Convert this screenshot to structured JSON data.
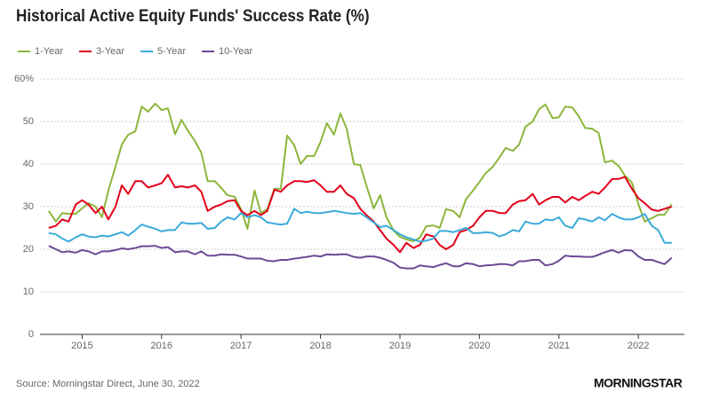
{
  "chart_data": {
    "type": "line",
    "title": "Historical Active Equity Funds' Success Rate (%)",
    "source": "Source: Morningstar Direct, June 30, 2022",
    "brand": "MORNINGSTAR",
    "x": [
      2014.58,
      2014.67,
      2014.75,
      2014.83,
      2014.92,
      2015.0,
      2015.08,
      2015.17,
      2015.25,
      2015.33,
      2015.42,
      2015.5,
      2015.58,
      2015.67,
      2015.75,
      2015.83,
      2015.92,
      2016.0,
      2016.08,
      2016.17,
      2016.25,
      2016.33,
      2016.42,
      2016.5,
      2016.58,
      2016.67,
      2016.75,
      2016.83,
      2016.92,
      2017.0,
      2017.08,
      2017.17,
      2017.25,
      2017.33,
      2017.42,
      2017.5,
      2017.58,
      2017.67,
      2017.75,
      2017.83,
      2017.92,
      2018.0,
      2018.08,
      2018.17,
      2018.25,
      2018.33,
      2018.42,
      2018.5,
      2018.58,
      2018.67,
      2018.75,
      2018.83,
      2018.92,
      2019.0,
      2019.08,
      2019.17,
      2019.25,
      2019.33,
      2019.42,
      2019.5,
      2019.58,
      2019.67,
      2019.75,
      2019.83,
      2019.92,
      2020.0,
      2020.08,
      2020.17,
      2020.25,
      2020.33,
      2020.42,
      2020.5,
      2020.58,
      2020.67,
      2020.75,
      2020.83,
      2020.92,
      2021.0,
      2021.08,
      2021.17,
      2021.25,
      2021.33,
      2021.42,
      2021.5,
      2021.58,
      2021.67,
      2021.75,
      2021.83,
      2021.92,
      2022.0,
      2022.08,
      2022.17,
      2022.25,
      2022.33,
      2022.42
    ],
    "series": [
      {
        "name": "1-Year",
        "color": "#8cb63c",
        "values": [
          29,
          26.5,
          28.5,
          28.3,
          28.3,
          29.6,
          30.8,
          30,
          27.5,
          33.8,
          39.4,
          44.6,
          46.9,
          47.7,
          53.5,
          52.3,
          54.2,
          52.7,
          53.1,
          47,
          50.4,
          47.9,
          45.4,
          42.7,
          36,
          36,
          34.4,
          32.7,
          32.3,
          29.4,
          24.8,
          33.8,
          28.5,
          29.4,
          34.2,
          34.2,
          46.7,
          44.4,
          40,
          41.9,
          41.9,
          45.2,
          49.6,
          46.9,
          51.9,
          48.3,
          40,
          39.8,
          34.8,
          29.6,
          32.7,
          27.5,
          24.4,
          22.9,
          22.3,
          21.9,
          22.7,
          25.4,
          25.6,
          25,
          29.4,
          29,
          27.5,
          31.7,
          33.8,
          35.8,
          37.9,
          39.4,
          41.5,
          43.8,
          43.1,
          44.6,
          48.8,
          50,
          52.9,
          54,
          50.8,
          51,
          53.5,
          53.3,
          51.2,
          48.5,
          48.3,
          47.3,
          40.4,
          40.8,
          39.6,
          37.3,
          35.6,
          30.6,
          26.5,
          27.3,
          28.1,
          28.1,
          30.6
        ]
      },
      {
        "name": "3-Year",
        "color": "#e2001a",
        "values": [
          25,
          25.5,
          27,
          26.5,
          30.5,
          31.5,
          30.5,
          28.5,
          30,
          27,
          30,
          35,
          33,
          36,
          36,
          34.5,
          35,
          35.5,
          37.5,
          34.5,
          34.8,
          34.5,
          35,
          33.5,
          29,
          30,
          30.5,
          31.3,
          31.5,
          29,
          28,
          29,
          28,
          29,
          34,
          33.5,
          35,
          36,
          36,
          35.8,
          36.2,
          35,
          33.5,
          33.5,
          35,
          33,
          32,
          29.5,
          28,
          26.5,
          24.5,
          22.5,
          21,
          19.3,
          21.5,
          20.3,
          21,
          23.5,
          23,
          21,
          20,
          21,
          24,
          24.5,
          25.5,
          27.5,
          29,
          29,
          28.5,
          28.5,
          30.5,
          31.3,
          31.5,
          33,
          30.5,
          31.5,
          32.3,
          32.3,
          31,
          32.3,
          31.5,
          32.5,
          33.5,
          33,
          34.5,
          36.5,
          36.5,
          37,
          34.2,
          32,
          30.8,
          29.3,
          29,
          29.5,
          30
        ]
      },
      {
        "name": "5-Year",
        "color": "#3aaad8",
        "values": [
          23.8,
          23.5,
          22.5,
          21.8,
          22.8,
          23.5,
          23,
          22.8,
          23.2,
          23,
          23.5,
          24,
          23.2,
          24.5,
          25.8,
          25.3,
          24.8,
          24.2,
          24.5,
          24.5,
          26.3,
          26,
          26,
          26.2,
          24.8,
          25,
          26.5,
          27.5,
          27,
          28.5,
          27.5,
          28,
          27.5,
          26.3,
          26,
          25.8,
          26,
          29.5,
          28.5,
          28.8,
          28.5,
          28.5,
          28.7,
          29,
          28.8,
          28.5,
          28.3,
          28.5,
          27.5,
          26.3,
          25.2,
          25.5,
          24.5,
          23.5,
          22.8,
          22.3,
          21.8,
          22,
          22.5,
          24.3,
          24.3,
          24,
          24.5,
          25,
          23.8,
          23.8,
          24,
          23.8,
          23,
          23.5,
          24.5,
          24.2,
          26.5,
          26,
          26,
          27,
          26.8,
          27.5,
          25.5,
          25,
          27.3,
          27,
          26.5,
          27.5,
          26.8,
          28.3,
          27.5,
          27,
          27,
          27.5,
          28.3,
          25.5,
          24.5,
          21.5,
          21.5
        ]
      },
      {
        "name": "10-Year",
        "color": "#6b4a94",
        "values": [
          20.8,
          20,
          19.3,
          19.5,
          19.2,
          19.8,
          19.5,
          18.8,
          19.5,
          19.5,
          19.8,
          20.2,
          20,
          20.3,
          20.7,
          20.7,
          20.8,
          20.3,
          20.5,
          19.3,
          19.5,
          19.5,
          18.8,
          19.5,
          18.5,
          18.5,
          18.8,
          18.7,
          18.7,
          18.3,
          17.8,
          17.8,
          17.8,
          17.3,
          17.2,
          17.5,
          17.5,
          17.8,
          18,
          18.2,
          18.5,
          18.3,
          18.8,
          18.7,
          18.8,
          18.8,
          18.2,
          18,
          18.3,
          18.3,
          18,
          17.5,
          16.8,
          15.7,
          15.5,
          15.5,
          16.2,
          16,
          15.8,
          16.3,
          16.7,
          16,
          16,
          16.7,
          16.5,
          16,
          16.2,
          16.3,
          16.5,
          16.5,
          16.2,
          17.2,
          17.2,
          17.5,
          17.5,
          16.2,
          16.5,
          17.3,
          18.5,
          18.3,
          18.3,
          18.2,
          18.2,
          18.7,
          19.3,
          19.8,
          19.2,
          19.8,
          19.7,
          18.3,
          17.5,
          17.5,
          17,
          16.5,
          18
        ]
      }
    ],
    "xlim": [
      2014.47,
      2022.58
    ],
    "xticks": [
      2015,
      2016,
      2017,
      2018,
      2019,
      2020,
      2021,
      2022
    ],
    "ylim": [
      0,
      60
    ],
    "yticks": [
      0,
      10,
      20,
      30,
      40,
      50,
      {
        "value": 60,
        "label": "60%"
      }
    ],
    "grid": true,
    "legend": "top-left"
  }
}
